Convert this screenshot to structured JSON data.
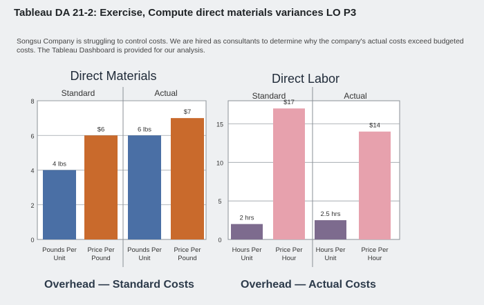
{
  "page": {
    "title": "Tableau DA 21-2: Exercise, Compute direct materials variances LO P3",
    "intro": "Songsu Company is struggling to control costs. We are hired as consultants to determine why the company's actual costs exceed budgeted costs. The Tableau Dashboard is provided for our analysis.",
    "footer_left": "Overhead — Standard Costs",
    "footer_right": "Overhead — Actual Costs"
  },
  "colors": {
    "blue": "#4a6fa5",
    "orange": "#c96a2c",
    "purple": "#7d6b8e",
    "pink": "#e7a1ad"
  },
  "chart_data": [
    {
      "type": "bar",
      "title": "Direct Materials",
      "groups": [
        "Standard",
        "Actual"
      ],
      "categories": [
        "Pounds Per Unit",
        "Price Per Pound",
        "Pounds Per Unit",
        "Price Per Pound"
      ],
      "values": [
        4,
        6,
        6,
        7
      ],
      "data_labels": [
        "4 lbs",
        "$6",
        "6 lbs",
        "$7"
      ],
      "bar_colors": [
        "#4a6fa5",
        "#c96a2c",
        "#4a6fa5",
        "#c96a2c"
      ],
      "ylim": [
        0,
        8
      ],
      "yticks": [
        0,
        2,
        4,
        6,
        8
      ],
      "grid": true
    },
    {
      "type": "bar",
      "title": "Direct Labor",
      "groups": [
        "Standard",
        "Actual"
      ],
      "categories": [
        "Hours Per Unit",
        "Price Per Hour",
        "Hours Per Unit",
        "Price Per Hour"
      ],
      "values": [
        2,
        17,
        2.5,
        14
      ],
      "data_labels": [
        "2 hrs",
        "$17",
        "2.5 hrs",
        "$14"
      ],
      "bar_colors": [
        "#7d6b8e",
        "#e7a1ad",
        "#7d6b8e",
        "#e7a1ad"
      ],
      "ylim": [
        0,
        18
      ],
      "yticks": [
        0,
        5,
        10,
        15
      ],
      "grid": true
    }
  ]
}
